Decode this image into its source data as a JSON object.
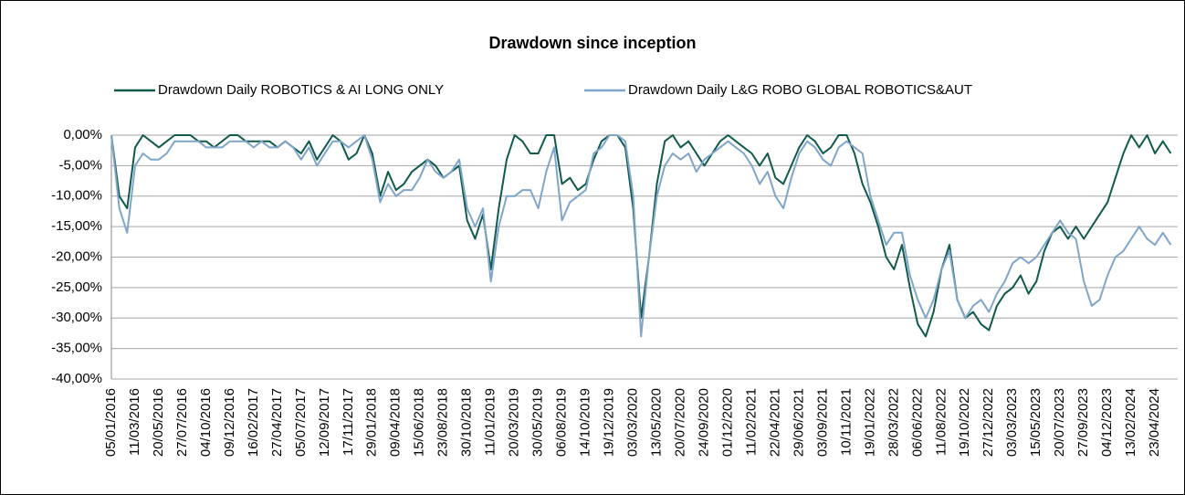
{
  "chart_data": {
    "type": "line",
    "title": "Drawdown since inception",
    "categories": [
      "05/01/2016",
      null,
      null,
      "11/03/2016",
      null,
      null,
      "20/05/2016",
      null,
      null,
      "27/07/2016",
      null,
      null,
      "04/10/2016",
      null,
      null,
      "09/12/2016",
      null,
      null,
      "16/02/2017",
      null,
      null,
      "27/04/2017",
      null,
      null,
      "05/07/2017",
      null,
      null,
      "12/09/2017",
      null,
      null,
      "17/11/2017",
      null,
      null,
      "29/01/2018",
      null,
      null,
      "09/04/2018",
      null,
      null,
      "15/06/2018",
      null,
      null,
      "23/08/2018",
      null,
      null,
      "30/10/2018",
      null,
      null,
      "11/01/2019",
      null,
      null,
      "20/03/2019",
      null,
      null,
      "30/05/2019",
      null,
      null,
      "06/08/2019",
      null,
      null,
      "14/10/2019",
      null,
      null,
      "19/12/2019",
      null,
      null,
      "03/03/2020",
      null,
      null,
      "13/05/2020",
      null,
      null,
      "20/07/2020",
      null,
      null,
      "24/09/2020",
      null,
      null,
      "01/12/2020",
      null,
      null,
      "11/02/2021",
      null,
      null,
      "22/04/2021",
      null,
      null,
      "29/06/2021",
      null,
      null,
      "03/09/2021",
      null,
      null,
      "10/11/2021",
      null,
      null,
      "19/01/2022",
      null,
      null,
      "28/03/2022",
      null,
      null,
      "06/06/2022",
      null,
      null,
      "11/08/2022",
      null,
      null,
      "19/10/2022",
      null,
      null,
      "27/12/2022",
      null,
      null,
      "03/03/2023",
      null,
      null,
      "15/05/2023",
      null,
      null,
      "20/07/2023",
      null,
      null,
      "27/09/2023",
      null,
      null,
      "04/12/2023",
      null,
      null,
      "13/02/2024",
      null,
      null,
      "23/04/2024",
      null,
      null
    ],
    "series": [
      {
        "name": "Drawdown Daily ROBOTICS & AI LONG ONLY",
        "color": "#0f5a4c",
        "values": [
          0,
          -10,
          -12,
          -2,
          0,
          -1,
          -2,
          -1,
          0,
          0,
          0,
          -1,
          -1,
          -2,
          -1,
          0,
          0,
          -1,
          -1,
          -1,
          -1,
          -2,
          -1,
          -2,
          -3,
          -1,
          -4,
          -2,
          0,
          -1,
          -4,
          -3,
          0,
          -3,
          -10,
          -6,
          -9,
          -8,
          -6,
          -5,
          -4,
          -5,
          -7,
          -6,
          -5,
          -14,
          -17,
          -13,
          -22,
          -12,
          -4,
          0,
          -1,
          -3,
          -3,
          0,
          0,
          -8,
          -7,
          -9,
          -8,
          -4,
          -1,
          0,
          0,
          -2,
          -12,
          -30,
          -20,
          -8,
          -1,
          0,
          -2,
          -1,
          -3,
          -5,
          -3,
          -1,
          0,
          -1,
          -2,
          -3,
          -5,
          -3,
          -7,
          -8,
          -5,
          -2,
          0,
          -1,
          -3,
          -2,
          0,
          0,
          -3,
          -8,
          -11,
          -15,
          -20,
          -22,
          -18,
          -25,
          -31,
          -33,
          -29,
          -22,
          -18,
          -27,
          -30,
          -29,
          -31,
          -32,
          -28,
          -26,
          -25,
          -23,
          -26,
          -24,
          -19,
          -16,
          -15,
          -17,
          -15,
          -17,
          -15,
          -13,
          -11,
          -7,
          -3,
          0,
          -2,
          0,
          -3,
          -1,
          -3
        ]
      },
      {
        "name": "Drawdown Daily L&G ROBO GLOBAL ROBOTICS&AUT",
        "color": "#7fa5c9",
        "values": [
          0,
          -12,
          -16,
          -5,
          -3,
          -4,
          -4,
          -3,
          -1,
          -1,
          -1,
          -1,
          -2,
          -2,
          -2,
          -1,
          -1,
          -1,
          -2,
          -1,
          -2,
          -2,
          -1,
          -2,
          -4,
          -2,
          -5,
          -3,
          -1,
          -1,
          -2,
          -1,
          0,
          -4,
          -11,
          -8,
          -10,
          -9,
          -9,
          -7,
          -4,
          -6,
          -7,
          -6,
          -4,
          -12,
          -15,
          -12,
          -24,
          -15,
          -10,
          -10,
          -9,
          -9,
          -12,
          -6,
          -2,
          -14,
          -11,
          -10,
          -9,
          -3,
          -2,
          0,
          0,
          -1,
          -10,
          -33,
          -20,
          -10,
          -5,
          -3,
          -4,
          -3,
          -6,
          -4,
          -3,
          -2,
          -1,
          -2,
          -3,
          -5,
          -8,
          -6,
          -10,
          -12,
          -7,
          -3,
          -1,
          -2,
          -4,
          -5,
          -2,
          -1,
          -2,
          -3,
          -10,
          -14,
          -18,
          -16,
          -16,
          -23,
          -27,
          -30,
          -27,
          -22,
          -19,
          -27,
          -30,
          -28,
          -27,
          -29,
          -26,
          -24,
          -21,
          -20,
          -21,
          -20,
          -18,
          -16,
          -14,
          -16,
          -17,
          -24,
          -28,
          -27,
          -23,
          -20,
          -19,
          -17,
          -15,
          -17,
          -18,
          -16,
          -18
        ]
      }
    ],
    "ylim": [
      -40,
      0
    ],
    "yticks": [
      {
        "value": 0,
        "label": "0,00%"
      },
      {
        "value": -5,
        "label": "-5,00%"
      },
      {
        "value": -10,
        "label": "-10,00%"
      },
      {
        "value": -15,
        "label": "-15,00%"
      },
      {
        "value": -20,
        "label": "-20,00%"
      },
      {
        "value": -25,
        "label": "-25,00%"
      },
      {
        "value": -30,
        "label": "-30,00%"
      },
      {
        "value": -35,
        "label": "-35,00%"
      },
      {
        "value": -40,
        "label": "-40,00%"
      }
    ],
    "grid": true,
    "legend": "top"
  }
}
